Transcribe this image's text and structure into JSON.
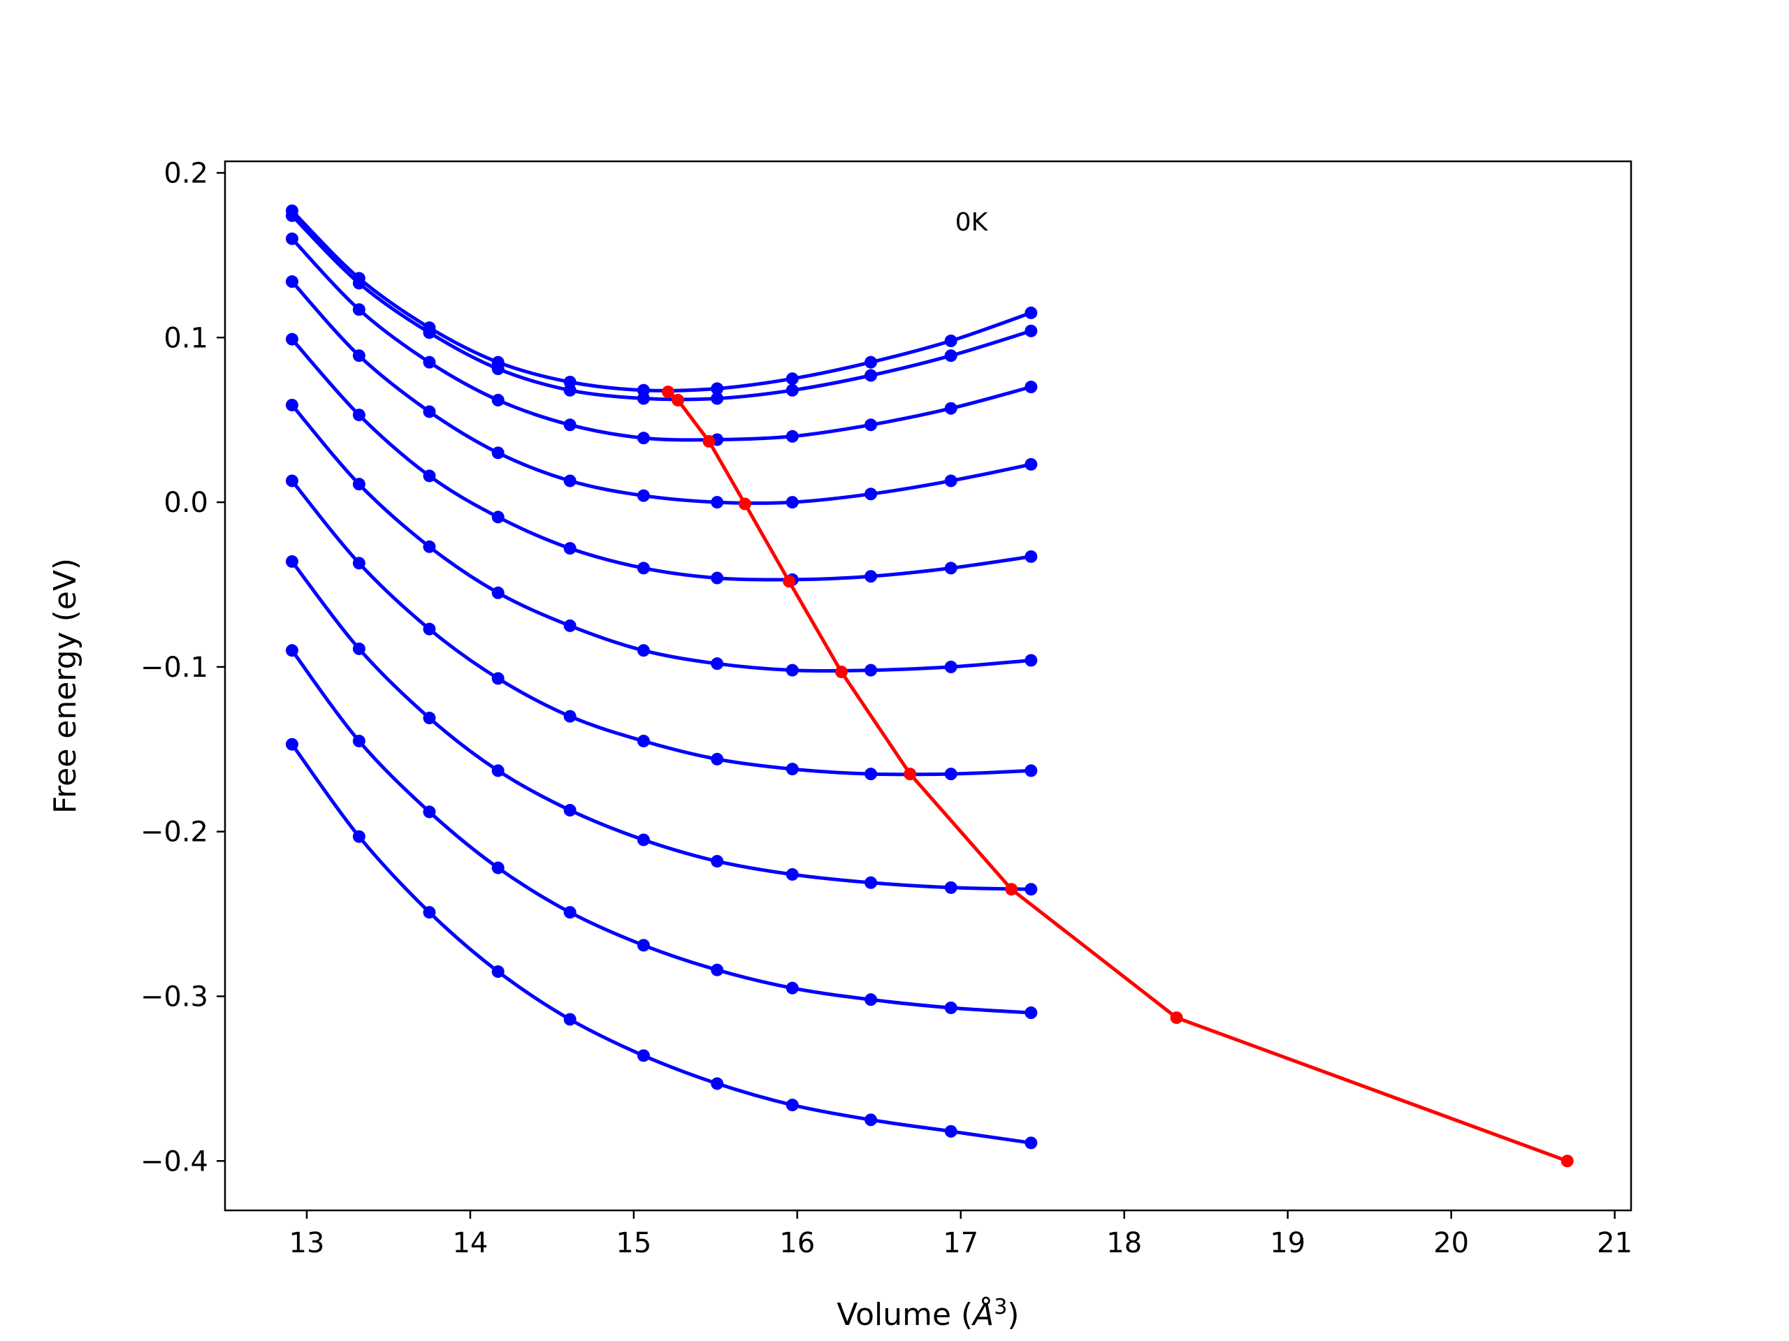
{
  "chart_data": {
    "type": "line",
    "title": "",
    "xlabel": "Volume (Å³)",
    "xlabel_prefix": "Volume (",
    "xlabel_unit": "Å",
    "xlabel_exp": "3",
    "xlabel_suffix": ")",
    "ylabel": "Free energy (eV)",
    "xlim": [
      12.5,
      21.1
    ],
    "ylim": [
      -0.43,
      0.207
    ],
    "xticks": [
      13,
      14,
      15,
      16,
      17,
      18,
      19,
      20,
      21
    ],
    "yticks": [
      0.2,
      0.1,
      0.0,
      -0.1,
      -0.2,
      -0.3,
      -0.4
    ],
    "ytick_labels": [
      "0.2",
      "0.1",
      "0.0",
      "−0.1",
      "−0.2",
      "−0.3",
      "−0.4"
    ],
    "grid": false,
    "legend": "none",
    "annotations": [
      {
        "text": "0K",
        "x": 17.08,
        "y": 0.168
      }
    ],
    "colors": {
      "curves": "#0000ff",
      "minimum_line": "#ff0000",
      "axes": "#000000"
    },
    "x": [
      12.91,
      13.32,
      13.75,
      14.17,
      14.61,
      15.06,
      15.51,
      15.97,
      16.45,
      16.94,
      17.43
    ],
    "series": [
      {
        "values": [
          0.177,
          0.136,
          0.106,
          0.085,
          0.073,
          0.068,
          0.069,
          0.075,
          0.085,
          0.098,
          0.115
        ]
      },
      {
        "values": [
          0.174,
          0.133,
          0.103,
          0.081,
          0.068,
          0.063,
          0.063,
          0.068,
          0.077,
          0.089,
          0.104
        ]
      },
      {
        "values": [
          0.16,
          0.117,
          0.085,
          0.062,
          0.047,
          0.039,
          0.038,
          0.04,
          0.047,
          0.057,
          0.07
        ]
      },
      {
        "values": [
          0.134,
          0.089,
          0.055,
          0.03,
          0.013,
          0.004,
          0.0,
          0.0,
          0.005,
          0.013,
          0.023
        ]
      },
      {
        "values": [
          0.099,
          0.053,
          0.016,
          -0.009,
          -0.028,
          -0.04,
          -0.046,
          -0.047,
          -0.045,
          -0.04,
          -0.033
        ]
      },
      {
        "values": [
          0.059,
          0.011,
          -0.027,
          -0.055,
          -0.075,
          -0.09,
          -0.098,
          -0.102,
          -0.102,
          -0.1,
          -0.096
        ]
      },
      {
        "values": [
          0.013,
          -0.037,
          -0.077,
          -0.107,
          -0.13,
          -0.145,
          -0.156,
          -0.162,
          -0.165,
          -0.165,
          -0.163
        ]
      },
      {
        "values": [
          -0.036,
          -0.089,
          -0.131,
          -0.163,
          -0.187,
          -0.205,
          -0.218,
          -0.226,
          -0.231,
          -0.234,
          -0.235
        ]
      },
      {
        "values": [
          -0.09,
          -0.145,
          -0.188,
          -0.222,
          -0.249,
          -0.269,
          -0.284,
          -0.295,
          -0.302,
          -0.307,
          -0.31
        ]
      },
      {
        "values": [
          -0.147,
          -0.203,
          -0.249,
          -0.285,
          -0.314,
          -0.336,
          -0.353,
          -0.366,
          -0.375,
          -0.382,
          -0.389
        ]
      }
    ],
    "minimum_line": {
      "x": [
        15.21,
        15.27,
        15.46,
        15.68,
        15.95,
        16.27,
        16.69,
        17.31,
        18.32,
        20.71
      ],
      "y": [
        0.067,
        0.062,
        0.037,
        -0.001,
        -0.048,
        -0.103,
        -0.165,
        -0.235,
        -0.313,
        -0.4
      ]
    }
  }
}
